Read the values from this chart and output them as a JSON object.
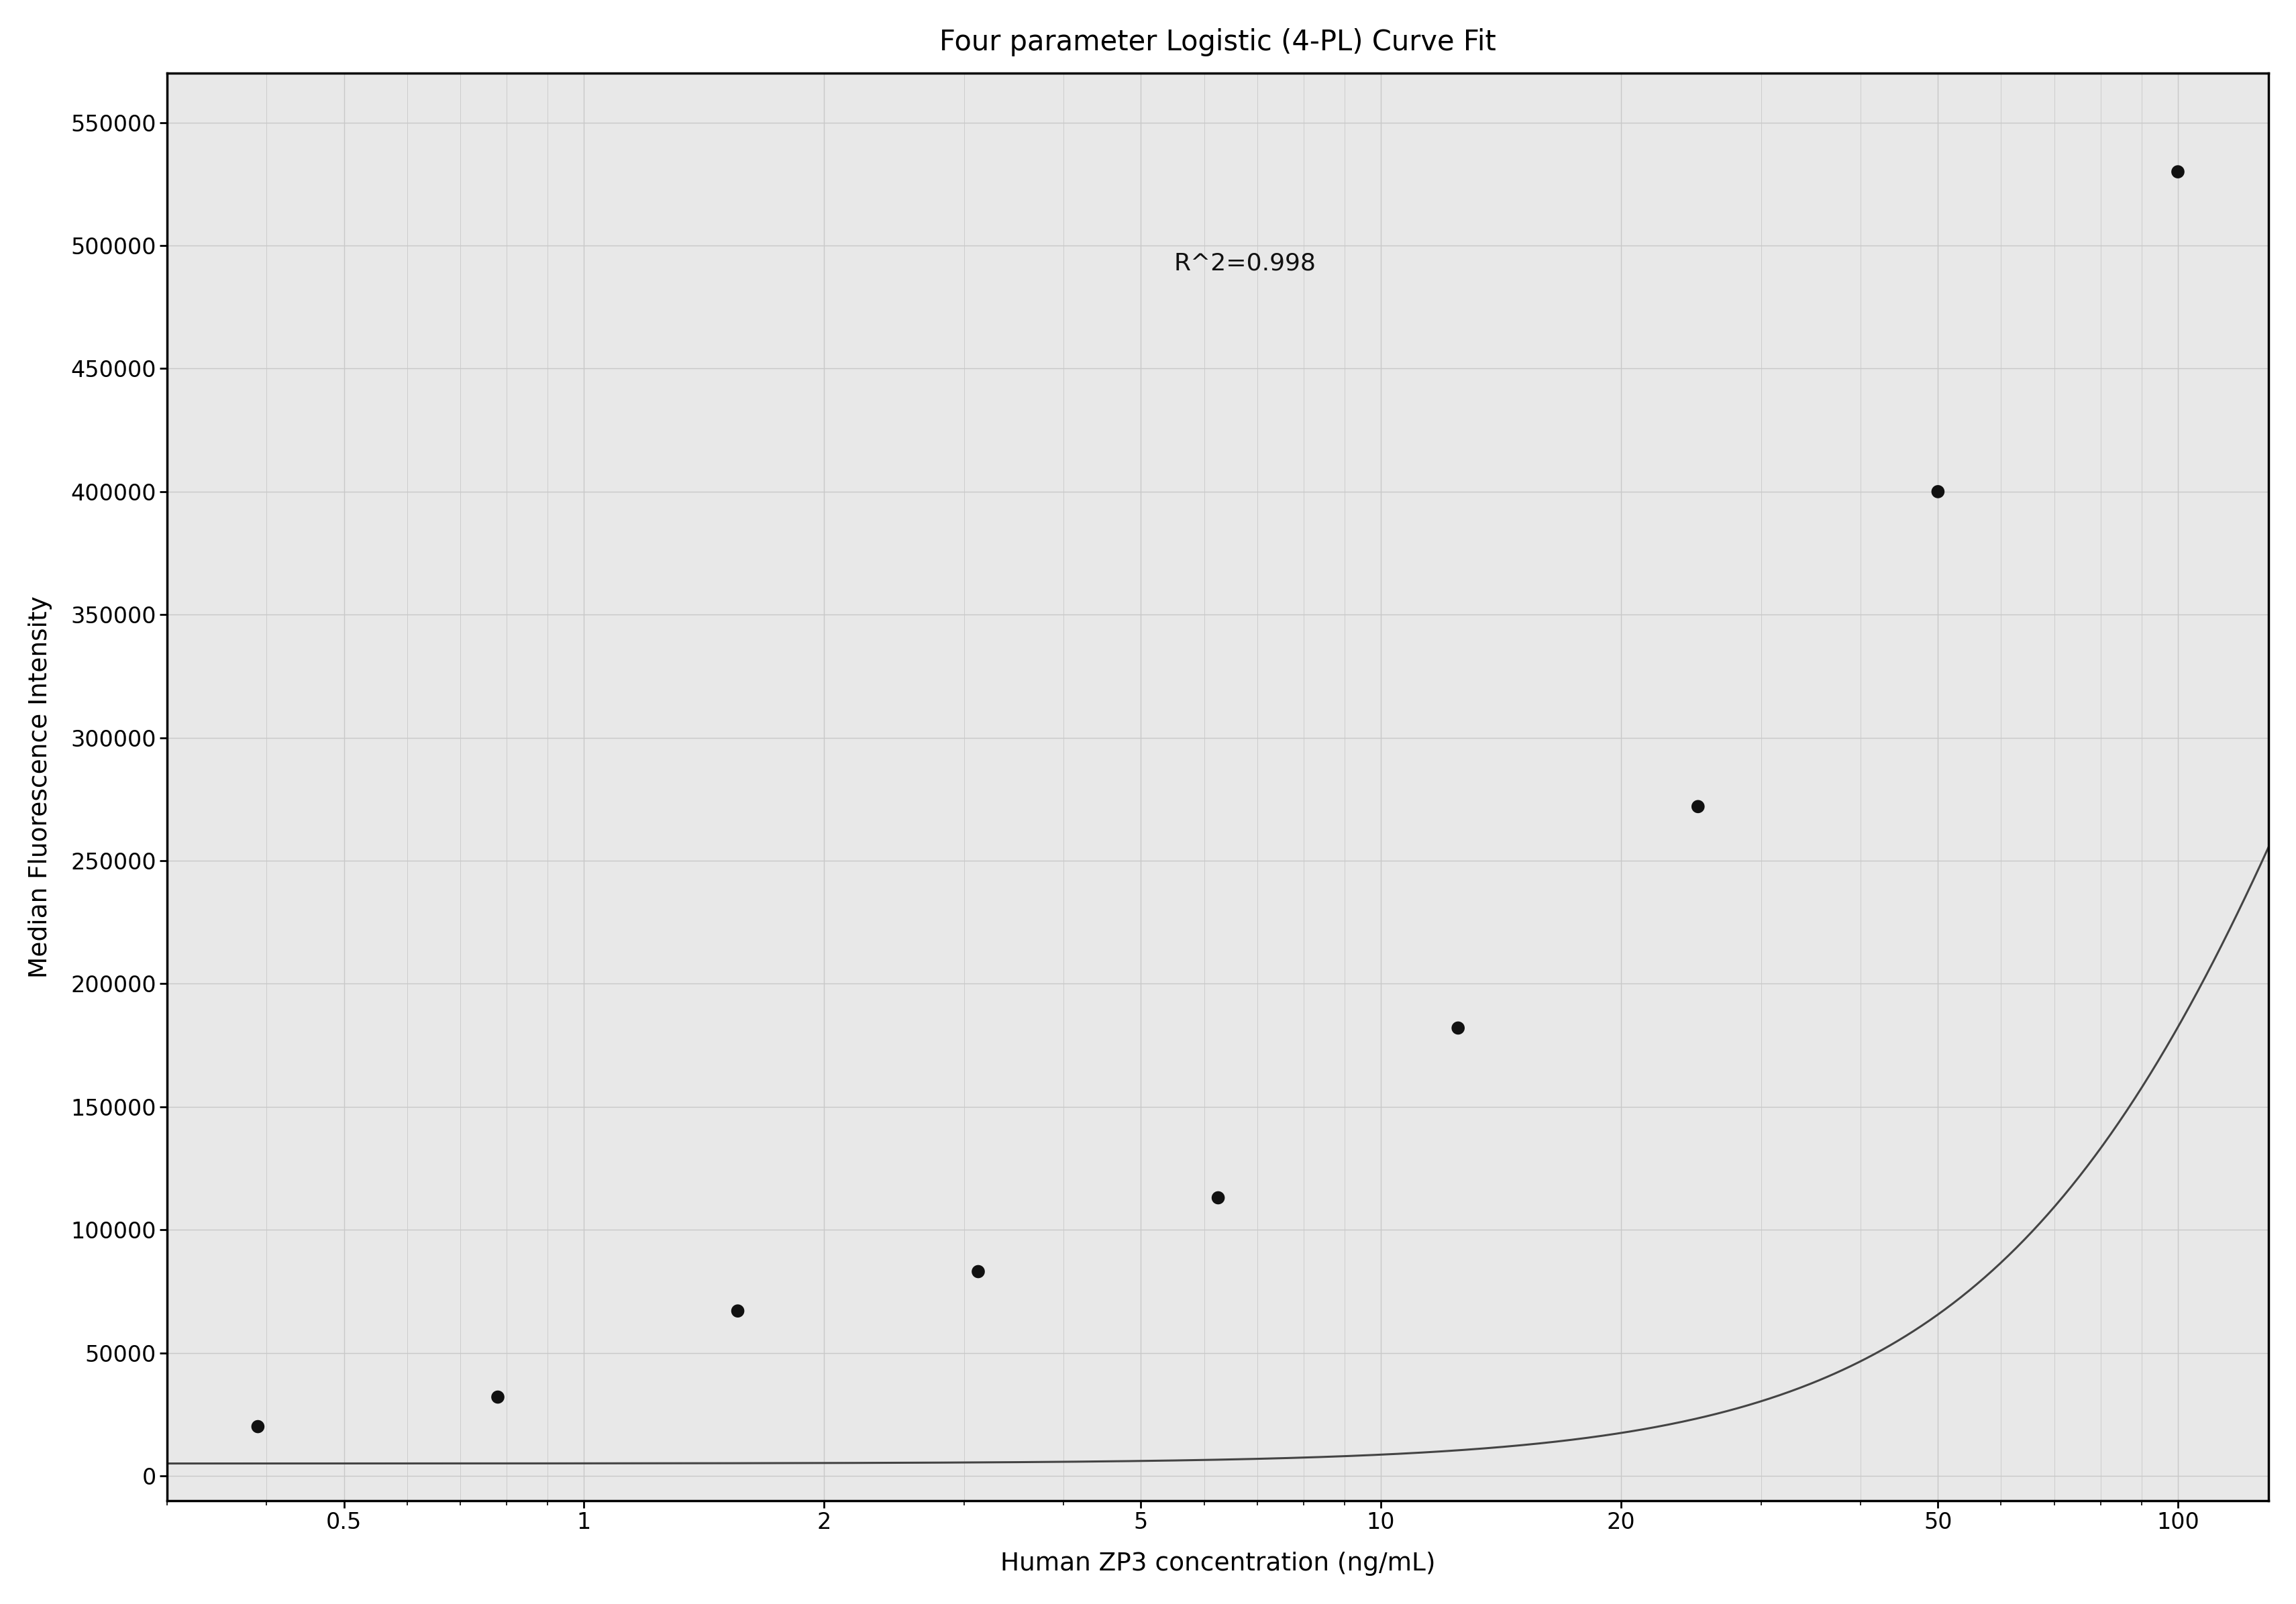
{
  "title": "Four parameter Logistic (4-PL) Curve Fit",
  "xlabel": "Human ZP3 concentration (ng/mL)",
  "ylabel": "Median Fluorescence Intensity",
  "scatter_x": [
    0.39,
    0.78,
    1.56,
    3.125,
    6.25,
    12.5,
    25,
    50,
    100
  ],
  "scatter_y": [
    20000,
    32000,
    67000,
    83000,
    113000,
    182000,
    272000,
    400000,
    530000
  ],
  "r2_text": "R^2=0.998",
  "r2_x": 5.5,
  "r2_y": 490000,
  "ylim_min": -10000,
  "ylim_max": 570000,
  "xlim_min": 0.3,
  "xlim_max": 130,
  "yticks": [
    0,
    50000,
    100000,
    150000,
    200000,
    250000,
    300000,
    350000,
    400000,
    450000,
    500000,
    550000
  ],
  "ytick_labels": [
    "0",
    "50000",
    "100000",
    "150000",
    "200000",
    "250000",
    "300000",
    "350000",
    "400000",
    "450000",
    "500000",
    "550000"
  ],
  "xtick_positions": [
    0.5,
    1,
    2,
    5,
    10,
    20,
    50,
    100
  ],
  "xtick_labels": [
    "0.5",
    "1",
    "2",
    "5",
    "10",
    "20",
    "50",
    "100"
  ],
  "point_color": "#111111",
  "line_color": "#444444",
  "grid_color": "#c8c8c8",
  "background_color": "#e8e8e8",
  "fig_background": "#ffffff",
  "title_fontsize": 30,
  "label_fontsize": 27,
  "tick_fontsize": 24,
  "annotation_fontsize": 26,
  "point_size": 200,
  "line_width": 2.2,
  "4pl_A": 5000,
  "4pl_B": 1.8,
  "4pl_C": 200,
  "4pl_D": 800000
}
